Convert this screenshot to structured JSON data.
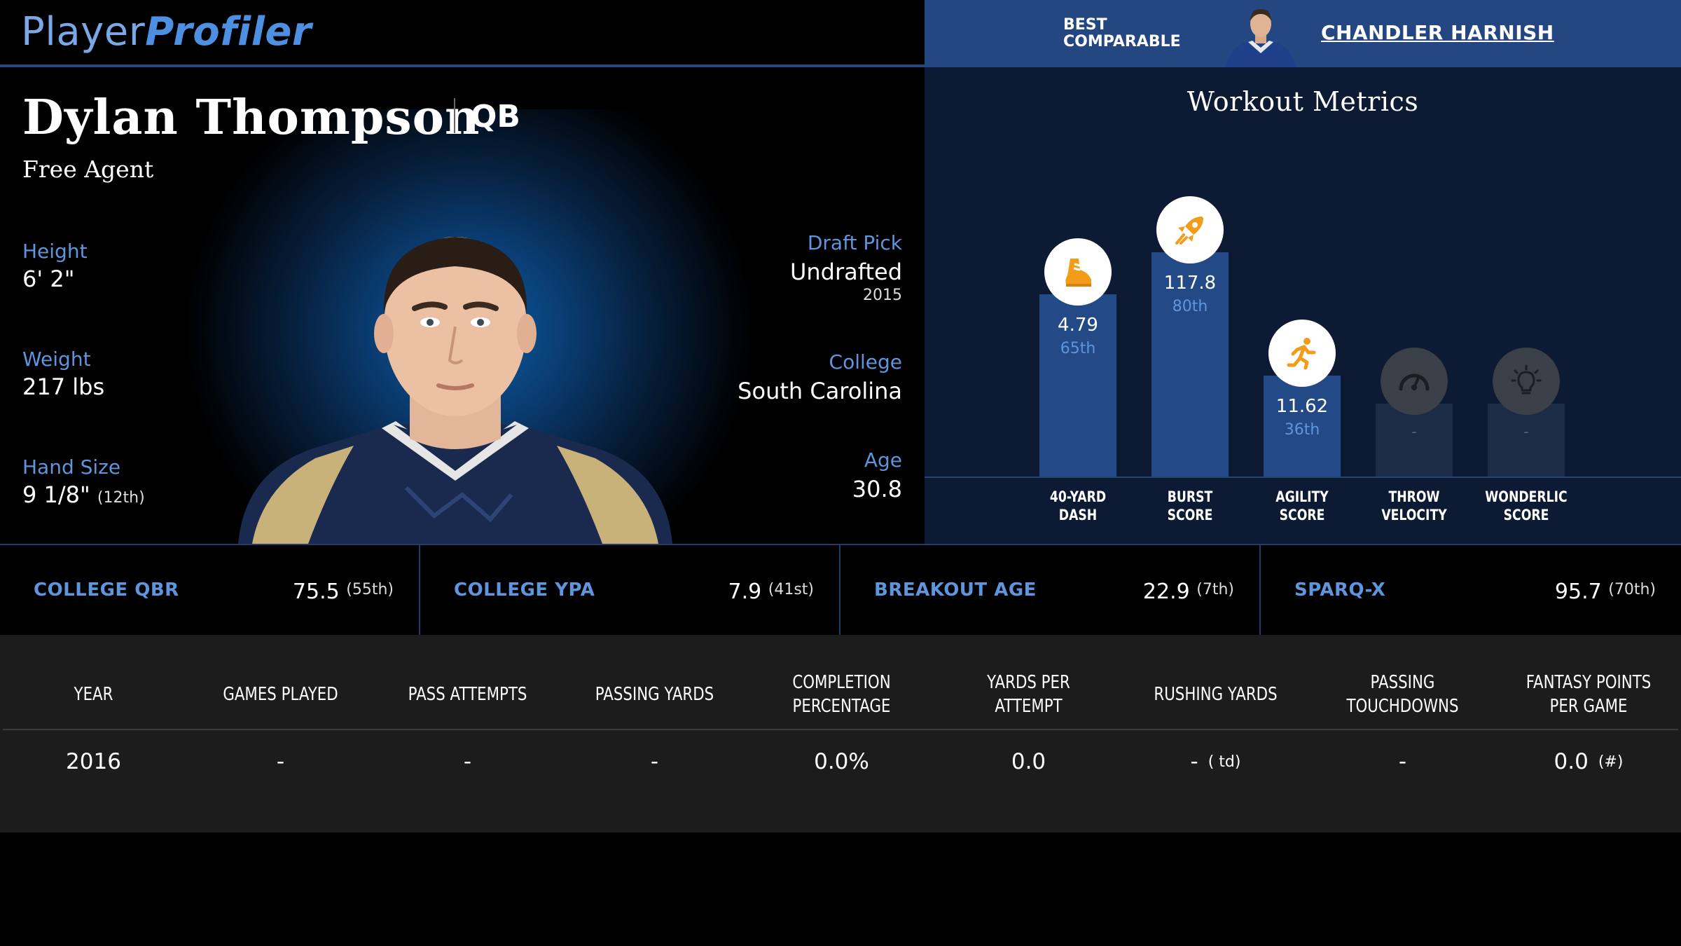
{
  "brand": {
    "part1": "Player",
    "part2": "Profiler"
  },
  "comparable": {
    "label": "BEST COMPARABLE",
    "name": "CHANDLER HARNISH"
  },
  "player": {
    "name": "Dylan Thompson",
    "position": "QB",
    "team": "Free Agent",
    "height_label": "Height",
    "height": "6' 2\"",
    "weight_label": "Weight",
    "weight": "217 lbs",
    "hand_label": "Hand Size",
    "hand": "9 1/8\"",
    "hand_pct": "(12th)",
    "draft_label": "Draft Pick",
    "draft": "Undrafted",
    "draft_year": "2015",
    "college_label": "College",
    "college": "South Carolina",
    "age_label": "Age",
    "age": "30.8"
  },
  "workout": {
    "title": "Workout Metrics",
    "metrics": [
      {
        "label_1": "40-YARD",
        "label_2": "DASH",
        "value": "4.79",
        "pct": "65th",
        "percentile": 65,
        "icon": "shoe-icon",
        "active": true
      },
      {
        "label_1": "BURST",
        "label_2": "SCORE",
        "value": "117.8",
        "pct": "80th",
        "percentile": 80,
        "icon": "rocket-icon",
        "active": true
      },
      {
        "label_1": "AGILITY",
        "label_2": "SCORE",
        "value": "11.62",
        "pct": "36th",
        "percentile": 36,
        "icon": "runner-icon",
        "active": true
      },
      {
        "label_1": "THROW",
        "label_2": "VELOCITY",
        "value": "-",
        "pct": "",
        "percentile": 26,
        "icon": "speedometer-icon",
        "active": false
      },
      {
        "label_1": "WONDERLIC",
        "label_2": "SCORE",
        "value": "-",
        "pct": "",
        "percentile": 26,
        "icon": "lightbulb-icon",
        "active": false
      }
    ]
  },
  "college_stats": [
    {
      "label": "COLLEGE QBR",
      "value": "75.5",
      "pct": "(55th)"
    },
    {
      "label": "COLLEGE YPA",
      "value": "7.9",
      "pct": "(41st)"
    },
    {
      "label": "BREAKOUT AGE",
      "value": "22.9",
      "pct": "(7th)"
    },
    {
      "label": "SPARQ-X",
      "value": "95.7",
      "pct": "(70th)"
    }
  ],
  "season_table": {
    "headers": [
      "YEAR",
      "GAMES PLAYED",
      "PASS ATTEMPTS",
      "PASSING YARDS",
      "COMPLETION PERCENTAGE",
      "YARDS PER ATTEMPT",
      "RUSHING YARDS",
      "PASSING TOUCHDOWNS",
      "FANTASY POINTS PER GAME"
    ],
    "rows": [
      {
        "year": "2016",
        "games": "-",
        "attempts": "-",
        "pass_yards": "-",
        "completion": "0.0%",
        "ypa": "0.0",
        "rush_yards": "-",
        "rush_td": "( td)",
        "pass_td": "-",
        "fppg": "0.0",
        "fppg_rank": "(#)"
      }
    ]
  },
  "colors": {
    "accent_blue": "#5e95dc",
    "header_blue": "#244781",
    "icon_orange": "#f39c1a"
  }
}
